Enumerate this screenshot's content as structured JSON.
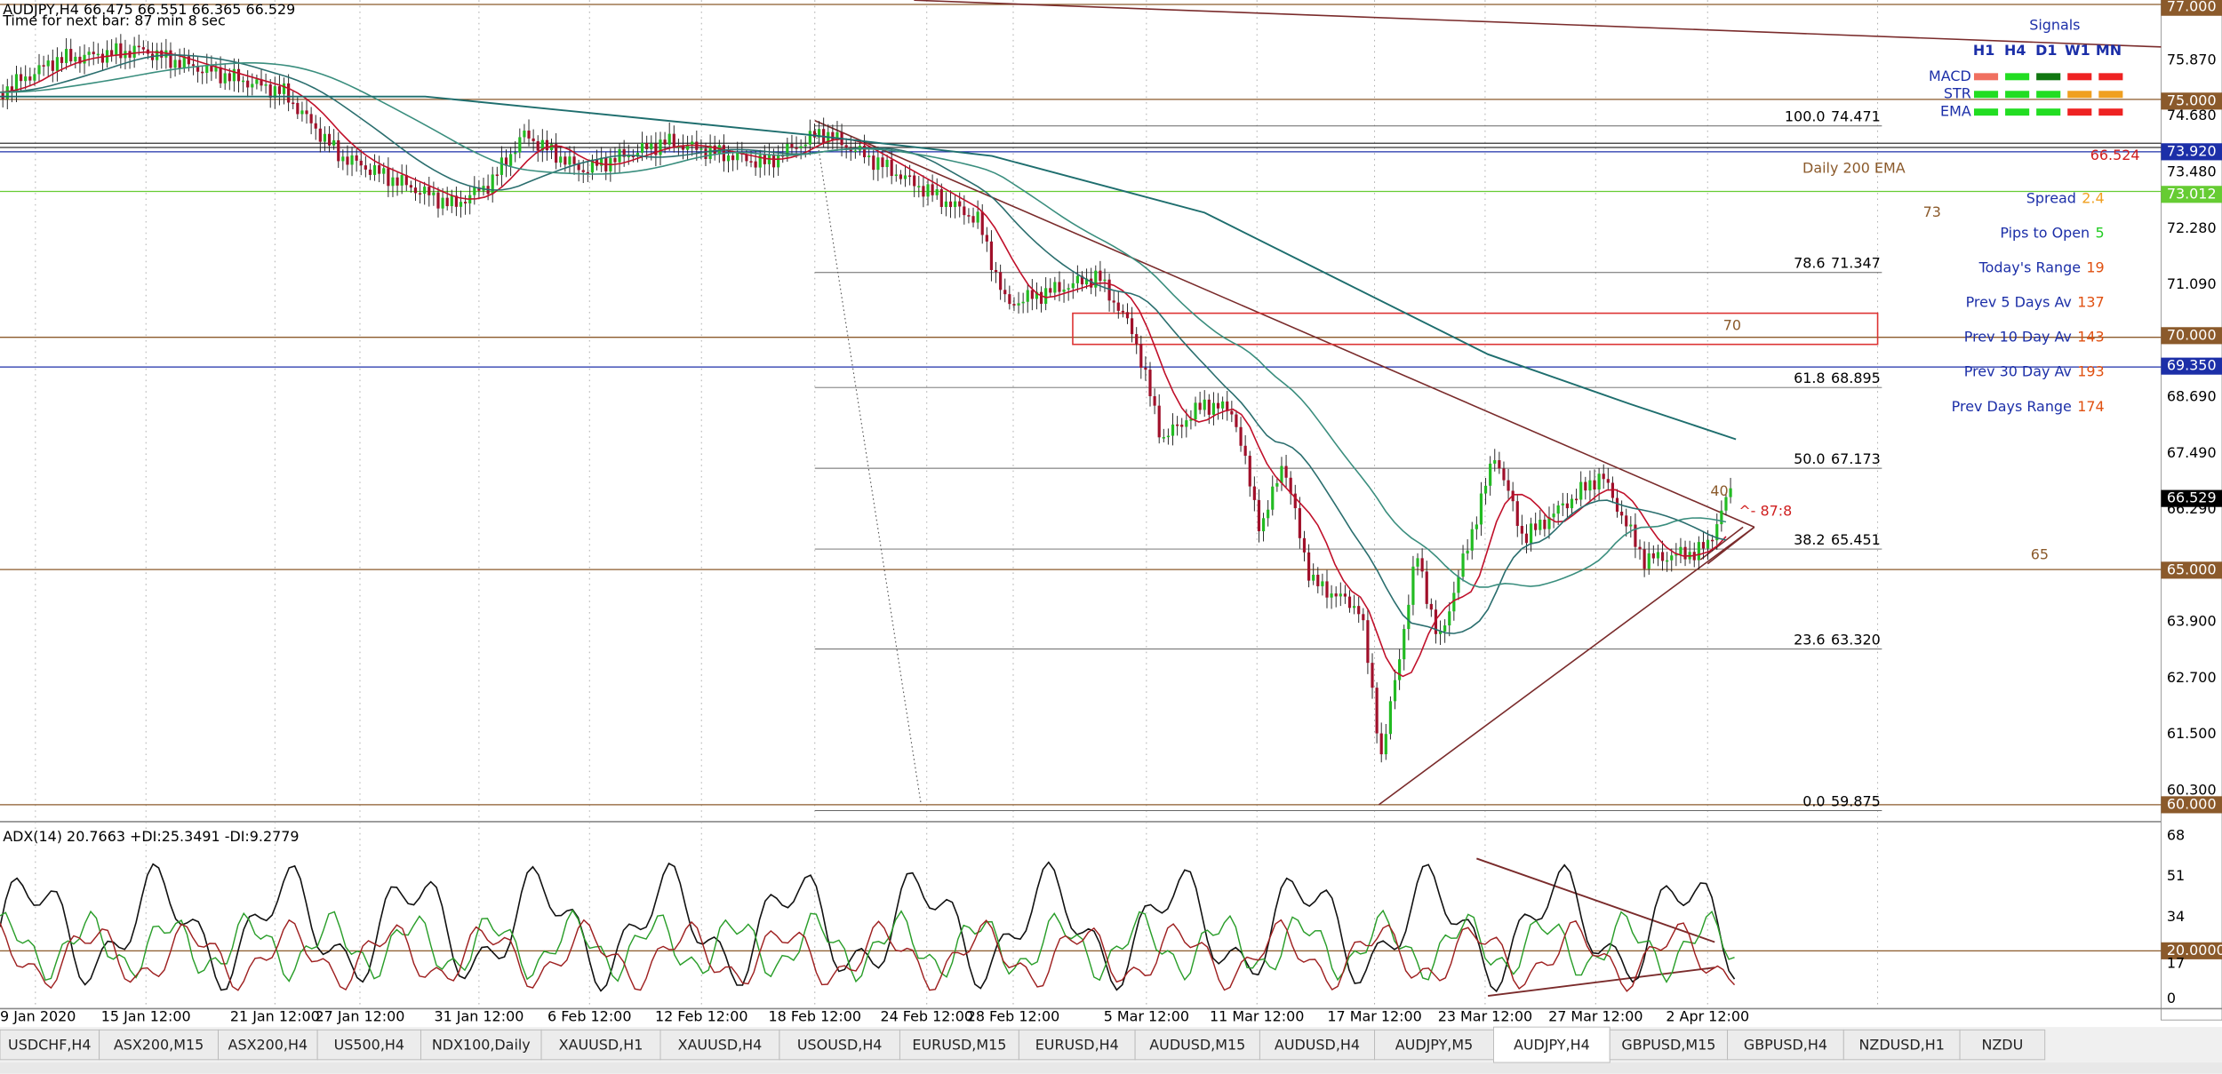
{
  "header": {
    "symbol_line": "AUDJPY,H4  66.475 66.551 66.365 66.529",
    "timer": "Time for next bar: 87 min 8 sec"
  },
  "price_axis": [
    {
      "text": "77.000",
      "bg": "#8b5a2b"
    },
    {
      "text": "75.870"
    },
    {
      "text": "75.000",
      "bg": "#8b5a2b"
    },
    {
      "text": "74.680"
    },
    {
      "text": "73.920",
      "bg": "#1c2fa8"
    },
    {
      "text": "73.480"
    },
    {
      "text": "73.012",
      "bg": "#66cc33"
    },
    {
      "text": "72.280"
    },
    {
      "text": "71.090"
    },
    {
      "text": "70.000",
      "bg": "#8b5a2b"
    },
    {
      "text": "69.350",
      "bg": "#1c2fa8"
    },
    {
      "text": "68.690"
    },
    {
      "text": "67.490"
    },
    {
      "text": "66.529",
      "bg": "#000000"
    },
    {
      "text": "66.290"
    },
    {
      "text": "65.000",
      "bg": "#8b5a2b"
    },
    {
      "text": "63.900"
    },
    {
      "text": "62.700"
    },
    {
      "text": "61.500"
    },
    {
      "text": "60.300"
    },
    {
      "text": "60.000",
      "bg": "#8b5a2b"
    }
  ],
  "fib_levels": [
    {
      "level": "100.0",
      "price": "74.471"
    },
    {
      "level": "78.6",
      "price": "71.347"
    },
    {
      "level": "61.8",
      "price": "68.895"
    },
    {
      "level": "50.0",
      "price": "67.173"
    },
    {
      "level": "38.2",
      "price": "65.451"
    },
    {
      "level": "23.6",
      "price": "63.320"
    },
    {
      "level": "0.0",
      "price": "59.875"
    }
  ],
  "annotations": {
    "ema": "Daily 200 EMA",
    "level_73": "73",
    "level_70": "70",
    "level_65": "65",
    "adx_value": "40",
    "ratio": "^- 87:8"
  },
  "signals": {
    "title": "Signals",
    "timeframes": [
      "H1",
      "H4",
      "D1",
      "W1",
      "MN"
    ],
    "rows": [
      {
        "name": "MACD",
        "colors": [
          "#f07060",
          "#22dd22",
          "#117711",
          "#ee2222",
          "#ee2222"
        ]
      },
      {
        "name": "STR",
        "colors": [
          "#22dd22",
          "#22dd22",
          "#22dd22",
          "#f0a020",
          "#f0a020"
        ]
      },
      {
        "name": "EMA",
        "colors": [
          "#22dd22",
          "#22dd22",
          "#22dd22",
          "#ee2222",
          "#ee2222"
        ]
      }
    ],
    "price": "66.524",
    "info": [
      {
        "label": "Spread",
        "value": "2.4",
        "color": "#f0a020"
      },
      {
        "label": "Pips to Open",
        "value": "5",
        "color": "#22cc22"
      },
      {
        "label": "Today's Range",
        "value": "19",
        "color": "#e05010"
      },
      {
        "label": "Prev 5 Days Av",
        "value": "137",
        "color": "#e05010"
      },
      {
        "label": "Prev 10 Day Av",
        "value": "143",
        "color": "#e05010"
      },
      {
        "label": "Prev 30 Day Av",
        "value": "193",
        "color": "#e05010"
      },
      {
        "label": "Prev Days Range",
        "value": "174",
        "color": "#e05010"
      }
    ]
  },
  "indicator": {
    "title": "ADX(14) 20.7663 +DI:25.3491 -DI:9.2779",
    "axis": [
      "68",
      "51",
      "34",
      "20.0000",
      "17",
      "0"
    ]
  },
  "dates": [
    "9 Jan 2020",
    "15 Jan 12:00",
    "21 Jan 12:00",
    "27 Jan 12:00",
    "31 Jan 12:00",
    "6 Feb 12:00",
    "12 Feb 12:00",
    "18 Feb 12:00",
    "24 Feb 12:00",
    "28 Feb 12:00",
    "5 Mar 12:00",
    "11 Mar 12:00",
    "17 Mar 12:00",
    "23 Mar 12:00",
    "27 Mar 12:00",
    "2 Apr 12:00"
  ],
  "tabs": [
    "USDCHF,H4",
    "ASX200,M15",
    "ASX200,H4",
    "US500,H4",
    "NDX100,Daily",
    "XAUUSD,H1",
    "XAUUSD,H4",
    "USOUSD,H4",
    "EURUSD,M15",
    "EURUSD,H4",
    "AUDUSD,M15",
    "AUDUSD,H4",
    "AUDJPY,M5",
    "AUDJPY,H4",
    "GBPUSD,M15",
    "GBPUSD,H4",
    "NZDUSD,H1",
    "NZDU"
  ],
  "active_tab": 13
}
